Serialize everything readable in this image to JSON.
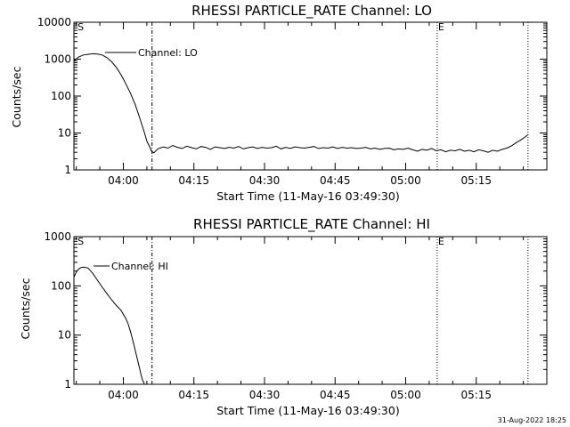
{
  "footer": {
    "timestamp": "31-Aug-2022 18:25"
  },
  "chart_data": [
    {
      "type": "line",
      "title": "RHESSI PARTICLE_RATE Channel: LO",
      "xlabel": "Start Time (11-May-16 03:49:30)",
      "ylabel": "Counts/sec",
      "yscale": "log",
      "ylim": [
        1,
        10000
      ],
      "y_ticks": [
        "1",
        "10",
        "100",
        "1000",
        "10000"
      ],
      "x_unit": "minutes after 03:49:30",
      "xlim": [
        0,
        100.5
      ],
      "x_ticks": [
        {
          "x": 10.5,
          "label": "04:00"
        },
        {
          "x": 25.5,
          "label": "04:15"
        },
        {
          "x": 40.5,
          "label": "04:30"
        },
        {
          "x": 55.5,
          "label": "04:45"
        },
        {
          "x": 70.5,
          "label": "05:00"
        },
        {
          "x": 85.5,
          "label": "05:15"
        }
      ],
      "grid": false,
      "series_label": "Channel: LO",
      "markers": [
        {
          "x": 0.6,
          "label": "S",
          "style": "none"
        },
        {
          "x": 16.6,
          "label": "",
          "style": "dashdot"
        },
        {
          "x": 77.2,
          "label": "E",
          "style": "dotted"
        },
        {
          "x": 96.5,
          "label": "",
          "style": "dotted"
        }
      ],
      "series": [
        {
          "name": "Channel: LO",
          "x": [
            0,
            1,
            2,
            3,
            4,
            5,
            6,
            7,
            8,
            9,
            10,
            11,
            12,
            13,
            14,
            15,
            15.5,
            16,
            16.5,
            17,
            17.5,
            18,
            19,
            20,
            21,
            22,
            23,
            24,
            25,
            26,
            27,
            28,
            29,
            30,
            31,
            32,
            33,
            34,
            35,
            36,
            37,
            38,
            39,
            40,
            41,
            42,
            43,
            44,
            45,
            46,
            47,
            48,
            49,
            50,
            51,
            52,
            53,
            54,
            55,
            56,
            57,
            58,
            59,
            60,
            61,
            62,
            63,
            64,
            65,
            66,
            67,
            68,
            69,
            70,
            71,
            72,
            73,
            74,
            75,
            76,
            77,
            78,
            79,
            80,
            81,
            82,
            83,
            84,
            85,
            86,
            87,
            88,
            89,
            90,
            91,
            92,
            93,
            94,
            95,
            96,
            96.5
          ],
          "y": [
            900,
            1150,
            1300,
            1350,
            1400,
            1380,
            1300,
            1100,
            850,
            600,
            380,
            220,
            120,
            60,
            25,
            10,
            6,
            4.5,
            3.2,
            2.9,
            3.4,
            3.8,
            4.2,
            3.9,
            4.6,
            4.1,
            3.8,
            4.4,
            4.0,
            3.7,
            4.3,
            4.1,
            3.6,
            4.2,
            4.0,
            3.8,
            4.1,
            3.9,
            4.3,
            3.7,
            4.0,
            4.2,
            3.8,
            4.1,
            3.9,
            4.0,
            4.4,
            3.7,
            4.1,
            3.8,
            4.2,
            4.0,
            3.9,
            4.1,
            4.3,
            3.8,
            4.0,
            3.9,
            4.2,
            3.8,
            4.1,
            3.9,
            4.0,
            3.8,
            3.9,
            4.1,
            3.7,
            3.9,
            3.6,
            3.8,
            3.9,
            3.5,
            3.7,
            3.6,
            3.9,
            3.5,
            3.2,
            3.6,
            3.4,
            3.8,
            3.3,
            3.5,
            3.1,
            3.4,
            3.3,
            3.6,
            3.2,
            3.4,
            3.1,
            3.5,
            3.3,
            3.0,
            3.4,
            3.2,
            3.6,
            3.9,
            4.5,
            5.5,
            6.5,
            8,
            9
          ]
        }
      ]
    },
    {
      "type": "line",
      "title": "RHESSI PARTICLE_RATE Channel: HI",
      "xlabel": "Start Time (11-May-16 03:49:30)",
      "ylabel": "Counts/sec",
      "yscale": "log",
      "ylim": [
        1,
        1000
      ],
      "y_ticks": [
        "1",
        "10",
        "100",
        "1000"
      ],
      "x_unit": "minutes after 03:49:30",
      "xlim": [
        0,
        100.5
      ],
      "x_ticks": [
        {
          "x": 10.5,
          "label": "04:00"
        },
        {
          "x": 25.5,
          "label": "04:15"
        },
        {
          "x": 40.5,
          "label": "04:30"
        },
        {
          "x": 55.5,
          "label": "04:45"
        },
        {
          "x": 70.5,
          "label": "05:00"
        },
        {
          "x": 85.5,
          "label": "05:15"
        }
      ],
      "grid": false,
      "series_label": "Channel: HI",
      "markers": [
        {
          "x": 0.6,
          "label": "S",
          "style": "none"
        },
        {
          "x": 16.6,
          "label": "",
          "style": "dashdot"
        },
        {
          "x": 77.2,
          "label": "E",
          "style": "dotted"
        },
        {
          "x": 96.5,
          "label": "",
          "style": "dotted"
        }
      ],
      "series": [
        {
          "name": "Channel: HI",
          "x": [
            0,
            0.5,
            1,
            1.5,
            2,
            3,
            4,
            5,
            6,
            7,
            8,
            9,
            10,
            11,
            11.5,
            12,
            12.5,
            13,
            13.5,
            14,
            14.3,
            14.6,
            15
          ],
          "y": [
            150,
            190,
            220,
            235,
            240,
            230,
            180,
            130,
            95,
            70,
            52,
            40,
            32,
            22,
            17,
            12,
            8,
            5,
            3.2,
            2,
            1.5,
            1.2,
            1
          ]
        }
      ]
    }
  ]
}
